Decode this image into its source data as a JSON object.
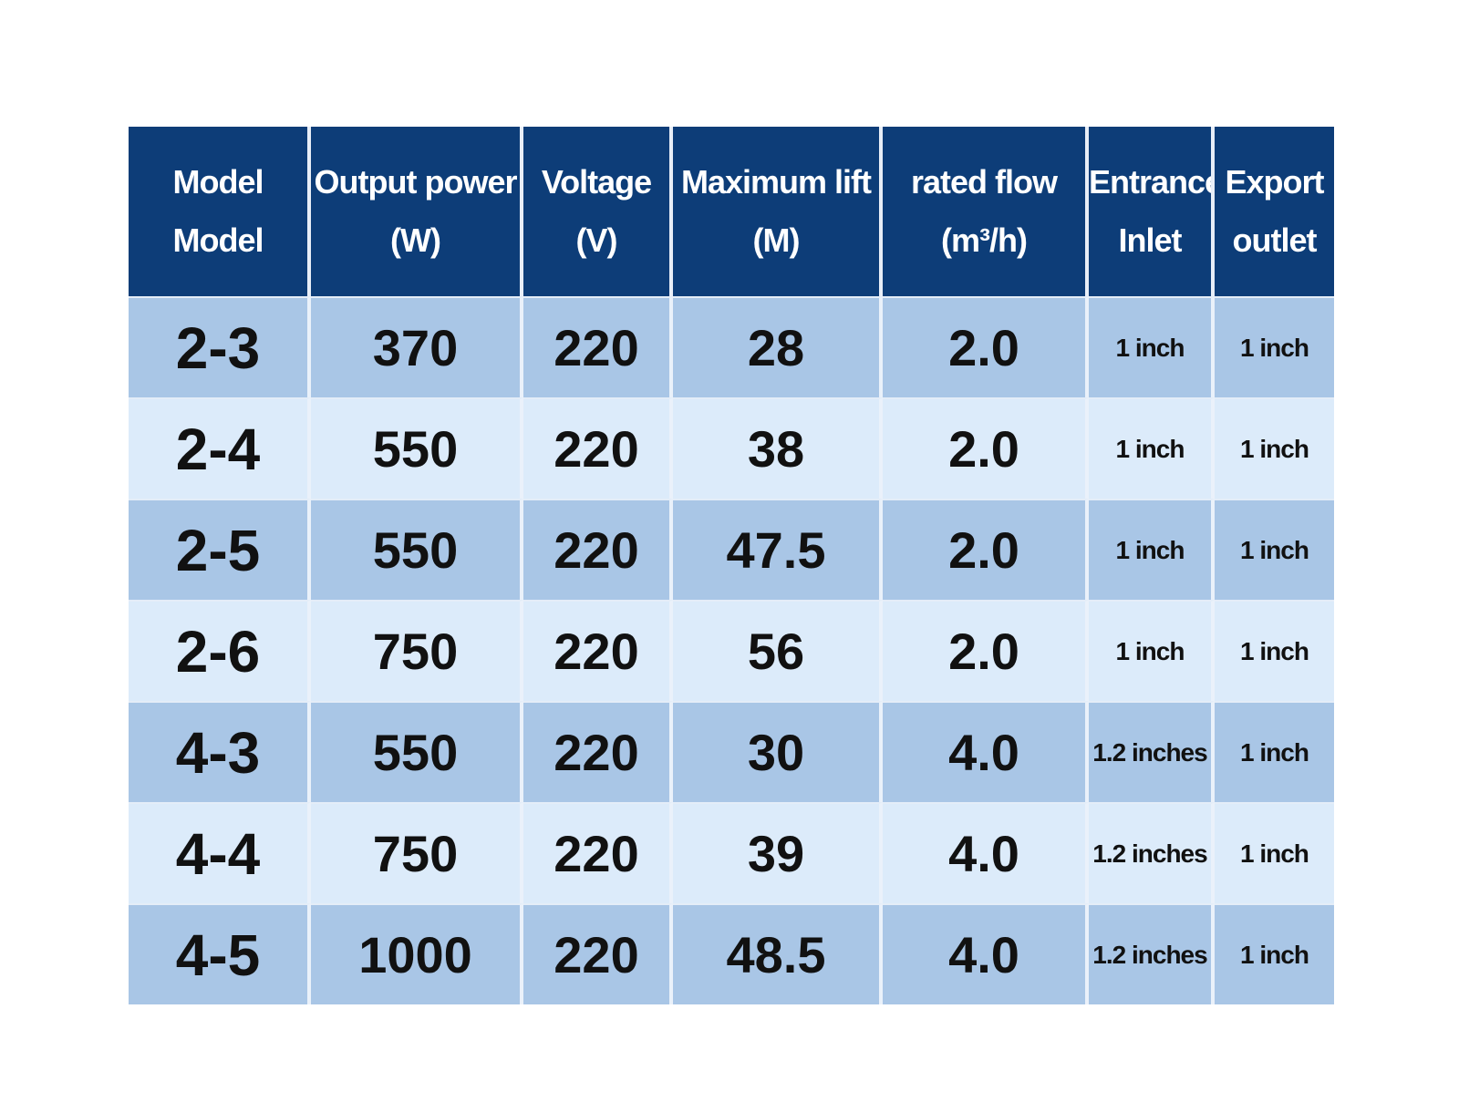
{
  "table": {
    "headers": [
      {
        "line1": "Model",
        "line2": "Model"
      },
      {
        "line1": "Output power",
        "line2": "(W)"
      },
      {
        "line1": "Voltage",
        "line2": "(V)"
      },
      {
        "line1": "Maximum lift",
        "line2": "(M)"
      },
      {
        "line1": "rated flow",
        "line2": "(m³/h)"
      },
      {
        "line1": "Entrance",
        "line2": "Inlet"
      },
      {
        "line1": "Export",
        "line2": "outlet"
      }
    ],
    "rows": [
      {
        "model": "2-3",
        "power": "370",
        "voltage": "220",
        "lift": "28",
        "flow": "2.0",
        "inlet": "1 inch",
        "outlet": "1 inch"
      },
      {
        "model": "2-4",
        "power": "550",
        "voltage": "220",
        "lift": "38",
        "flow": "2.0",
        "inlet": "1 inch",
        "outlet": "1 inch"
      },
      {
        "model": "2-5",
        "power": "550",
        "voltage": "220",
        "lift": "47.5",
        "flow": "2.0",
        "inlet": "1 inch",
        "outlet": "1 inch"
      },
      {
        "model": "2-6",
        "power": "750",
        "voltage": "220",
        "lift": "56",
        "flow": "2.0",
        "inlet": "1 inch",
        "outlet": "1 inch"
      },
      {
        "model": "4-3",
        "power": "550",
        "voltage": "220",
        "lift": "30",
        "flow": "4.0",
        "inlet": "1.2 inches",
        "outlet": "1 inch"
      },
      {
        "model": "4-4",
        "power": "750",
        "voltage": "220",
        "lift": "39",
        "flow": "4.0",
        "inlet": "1.2 inches",
        "outlet": "1 inch"
      },
      {
        "model": "4-5",
        "power": "1000",
        "voltage": "220",
        "lift": "48.5",
        "flow": "4.0",
        "inlet": "1.2 inches",
        "outlet": "1 inch"
      }
    ]
  },
  "colors": {
    "header_bg": "#0d3d78",
    "header_text": "#ffffff",
    "row_dark": "#a9c6e6",
    "row_light": "#dcebfa"
  }
}
